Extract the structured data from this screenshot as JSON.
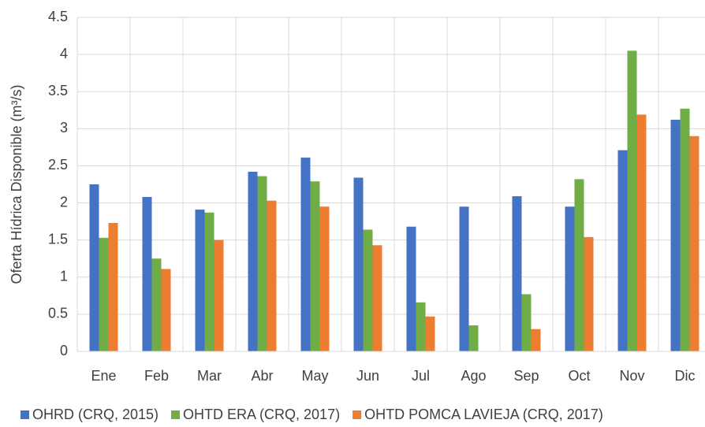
{
  "chart_data": {
    "type": "bar",
    "y_label": "Oferta Hídrica Disponible (m³/s)",
    "categories": [
      "Ene",
      "Feb",
      "Mar",
      "Abr",
      "May",
      "Jun",
      "Jul",
      "Ago",
      "Sep",
      "Oct",
      "Nov",
      "Dic"
    ],
    "series": [
      {
        "name": "OHRD (CRQ, 2015)",
        "color": "#4472c4",
        "values": [
          2.25,
          2.08,
          1.91,
          2.42,
          2.61,
          2.34,
          1.68,
          1.95,
          2.09,
          1.95,
          2.71,
          3.12
        ]
      },
      {
        "name": "OHTD ERA (CRQ, 2017)",
        "color": "#70ad47",
        "values": [
          1.53,
          1.25,
          1.87,
          2.36,
          2.29,
          1.64,
          0.66,
          0.35,
          0.77,
          2.32,
          4.05,
          3.27
        ]
      },
      {
        "name": "OHTD POMCA LAVIEJA (CRQ, 2017)",
        "color": "#ed7d31",
        "values": [
          1.73,
          1.11,
          1.5,
          2.03,
          1.95,
          1.43,
          0.47,
          null,
          0.3,
          1.54,
          3.19,
          2.9
        ]
      }
    ],
    "ylim": [
      0,
      4.5
    ],
    "yticks": [
      0,
      0.5,
      1,
      1.5,
      2,
      2.5,
      3,
      3.5,
      4,
      4.5
    ],
    "grid": true,
    "legend": "bottom"
  }
}
